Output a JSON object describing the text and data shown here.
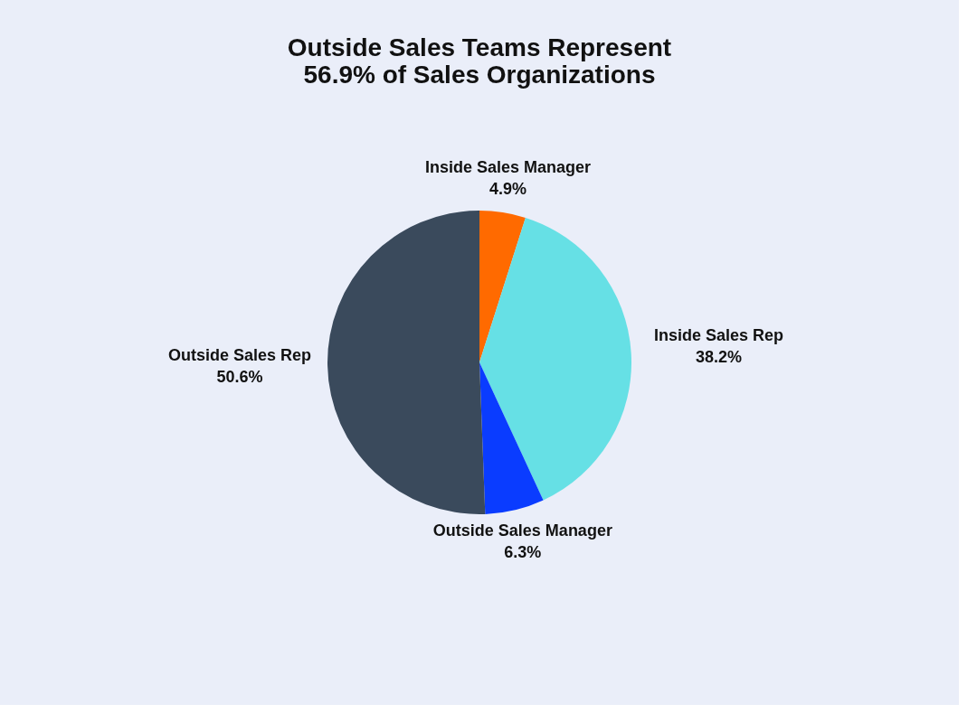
{
  "chart_data": {
    "type": "pie",
    "title": [
      "Outside Sales Teams Represent",
      "56.9% of Sales Organizations"
    ],
    "categories": [
      "Inside Sales Manager",
      "Inside Sales Rep",
      "Outside Sales Manager",
      "Outside Sales Rep"
    ],
    "values": [
      4.9,
      38.2,
      6.3,
      50.6
    ],
    "colors": [
      "#ff6a00",
      "#66e0e5",
      "#0a3cff",
      "#3a4a5c"
    ],
    "value_labels": [
      "4.9%",
      "38.2%",
      "6.3%",
      "50.6%"
    ],
    "legend": false
  }
}
